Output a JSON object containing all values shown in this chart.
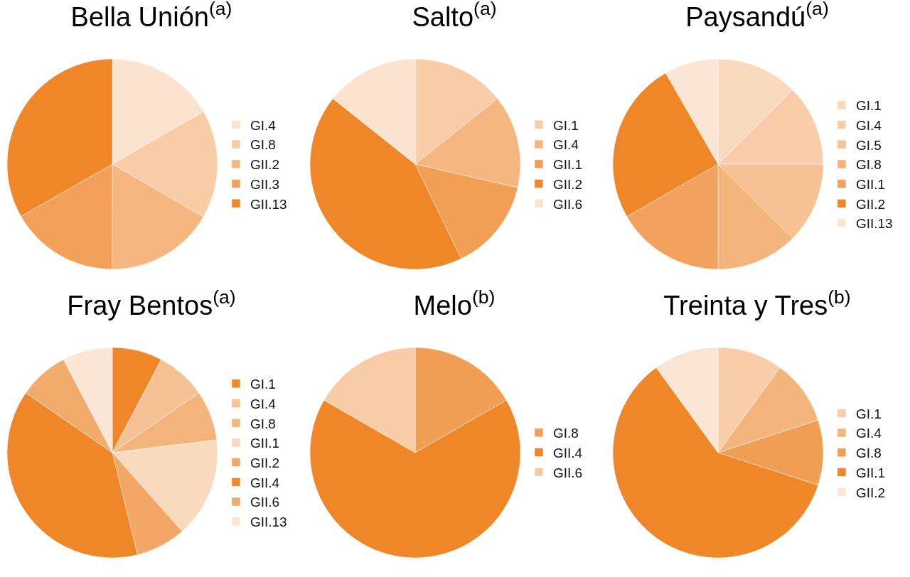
{
  "chart_data": [
    {
      "type": "pie",
      "title": "Bella Unión$^{(a)}$",
      "legend": "right",
      "categories": [
        "GI.4",
        "GI.8",
        "GII.2",
        "GII.3",
        "GII.13"
      ],
      "values": [
        16.7,
        16.7,
        16.7,
        16.7,
        33.3
      ],
      "colors": [
        "#fbe3cf",
        "#f8cca5",
        "#f5b680",
        "#f2a05a",
        "#ef8628"
      ]
    },
    {
      "type": "pie",
      "title": "Salto$^{(a)}$",
      "legend": "right",
      "categories": [
        "GI.1",
        "GI.4",
        "GII.1",
        "GII.2",
        "GII.6"
      ],
      "values": [
        14.3,
        14.3,
        14.2,
        42.9,
        14.3
      ],
      "colors": [
        "#f8cca6",
        "#f5b680",
        "#f29e55",
        "#ef8628",
        "#fbe3cf"
      ]
    },
    {
      "type": "pie",
      "title": "Paysandú$^{(a)}$",
      "legend": "right",
      "categories": [
        "GI.1",
        "GI.4",
        "GI.5",
        "GI.8",
        "GII.1",
        "GII.2",
        "GII.13"
      ],
      "values": [
        12.5,
        12.5,
        12.5,
        12.5,
        16.7,
        25,
        8.3
      ],
      "colors": [
        "#f9dabe",
        "#f8cda7",
        "#f6c194",
        "#f4b57c",
        "#f2a25e",
        "#ef8628",
        "#fbe5d4"
      ]
    },
    {
      "type": "pie",
      "title": "Fray Bentos$^{(a)}$",
      "legend": "right",
      "categories": [
        "GI.1",
        "GI.4",
        "GI.8",
        "GII.1",
        "GII.2",
        "GII.4",
        "GII.6",
        "GII.13"
      ],
      "values": [
        7.7,
        7.7,
        7.7,
        15.4,
        7.7,
        38.5,
        7.7,
        7.7
      ],
      "colors": [
        "#ef8628",
        "#f6c194",
        "#f4b57c",
        "#f9dabe",
        "#f2a766",
        "#ef8628",
        "#f3ab6d",
        "#fbe5d4"
      ]
    },
    {
      "type": "pie",
      "title": "Melo$^{(b)}$",
      "legend": "right",
      "categories": [
        "GI.8",
        "GII.4",
        "GII.6"
      ],
      "values": [
        16.7,
        66.7,
        16.7
      ],
      "colors": [
        "#f19e55",
        "#ef8628",
        "#f8cca6"
      ]
    },
    {
      "type": "pie",
      "title": "Treinta y Tres$^{(b)}$",
      "legend": "right",
      "categories": [
        "GI.1",
        "GI.4",
        "GI.8",
        "GII.1",
        "GII.2"
      ],
      "values": [
        10,
        10,
        10,
        60,
        10
      ],
      "colors": [
        "#f8cda8",
        "#f4b57c",
        "#f19e55",
        "#ef8628",
        "#fbe5d4"
      ]
    }
  ]
}
